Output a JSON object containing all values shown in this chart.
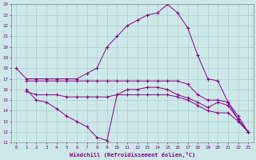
{
  "xlabel": "Windchill (Refroidissement éolien,°C)",
  "background_color": "#cce8e8",
  "line_color": "#8b008b",
  "grid_color": "#aacccc",
  "xlim": [
    -0.5,
    23.5
  ],
  "ylim": [
    11,
    24
  ],
  "yticks": [
    11,
    12,
    13,
    14,
    15,
    16,
    17,
    18,
    19,
    20,
    21,
    22,
    23,
    24
  ],
  "xticks": [
    0,
    1,
    2,
    3,
    4,
    5,
    6,
    7,
    8,
    9,
    10,
    11,
    12,
    13,
    14,
    15,
    16,
    17,
    18,
    19,
    20,
    21,
    22,
    23
  ],
  "lines": [
    {
      "x": [
        0,
        1,
        2,
        3,
        4,
        5,
        6,
        7,
        8,
        9,
        10,
        11,
        12,
        13,
        14,
        15,
        16,
        17,
        18,
        19,
        20,
        21,
        22,
        23
      ],
      "y": [
        18,
        17,
        17,
        17,
        17,
        17,
        17,
        17.5,
        18,
        20,
        21,
        22,
        22.5,
        23,
        23.2,
        24,
        23.2,
        21.8,
        19.2,
        17,
        16.8,
        14.8,
        13.5,
        12
      ],
      "marker": "+"
    },
    {
      "x": [
        1,
        2,
        3,
        4,
        5,
        6,
        7,
        8,
        9,
        10,
        11,
        12,
        13,
        14,
        15,
        16,
        17,
        18,
        19,
        20,
        21,
        22,
        23
      ],
      "y": [
        16.8,
        16.8,
        16.8,
        16.8,
        16.8,
        16.8,
        16.8,
        16.8,
        16.8,
        16.8,
        16.8,
        16.8,
        16.8,
        16.8,
        16.8,
        16.8,
        16.5,
        15.5,
        15,
        15,
        14.8,
        13.2,
        12
      ],
      "marker": "+"
    },
    {
      "x": [
        1,
        2,
        3,
        4,
        5,
        6,
        7,
        8,
        9,
        10,
        11,
        12,
        13,
        14,
        15,
        16,
        17,
        18,
        19,
        20,
        21,
        22,
        23
      ],
      "y": [
        15.8,
        15.5,
        15.5,
        15.5,
        15.3,
        15.3,
        15.3,
        15.3,
        15.3,
        15.5,
        15.5,
        15.5,
        15.5,
        15.5,
        15.5,
        15.3,
        15.0,
        14.5,
        14.0,
        13.8,
        13.8,
        13.0,
        12
      ],
      "marker": "+"
    },
    {
      "x": [
        1,
        2,
        3,
        4,
        5,
        6,
        7,
        8,
        9,
        10,
        11,
        12,
        13,
        14,
        15,
        16,
        17,
        18,
        19,
        20,
        21,
        22,
        23
      ],
      "y": [
        16,
        15,
        14.8,
        14.2,
        13.5,
        13.0,
        12.5,
        11.5,
        11.2,
        15.5,
        16,
        16,
        16.2,
        16.2,
        16,
        15.5,
        15.2,
        14.8,
        14.3,
        14.8,
        14.5,
        13.2,
        12
      ],
      "marker": "+"
    }
  ]
}
